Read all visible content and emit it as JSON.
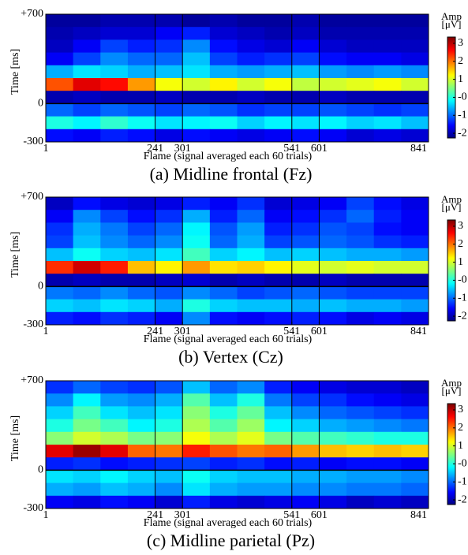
{
  "chart_data": [
    {
      "type": "heatmap",
      "title": "(a) Midline frontal (Fz)",
      "xlabel": "Flame (signal averaged each 60 trials)",
      "ylabel": "Time [ms]",
      "colorbar_label": [
        "Amp",
        "[μV]"
      ],
      "xlim": [
        1,
        841
      ],
      "ylim": [
        -300,
        700
      ],
      "xticks": [
        1,
        241,
        301,
        541,
        601,
        841
      ],
      "yticks": [
        {
          "value": 700,
          "label": "+700"
        },
        0,
        -300
      ],
      "vlines": [
        241,
        301,
        541,
        601
      ],
      "hlines": [
        0
      ],
      "clim": [
        -2.26,
        3.35
      ],
      "cticks": [
        3,
        2,
        1,
        {
          "value": 0,
          "label": "-0"
        },
        -1,
        -2
      ],
      "colormap": "jet",
      "xbins": [
        1,
        61,
        121,
        181,
        241,
        301,
        361,
        421,
        481,
        541,
        601,
        661,
        721,
        781,
        841
      ],
      "ybins": [
        700,
        600,
        500,
        400,
        300,
        200,
        100,
        0,
        -100,
        -200,
        -300
      ],
      "z": [
        [
          -2.1,
          -2.1,
          -2,
          -2,
          -2,
          -2.1,
          -2,
          -2.1,
          -2.1,
          -2,
          -2.1,
          -2.1,
          -2.1,
          -2.1
        ],
        [
          -2,
          -1.9,
          -1.8,
          -1.8,
          -1.6,
          -1.4,
          -1.8,
          -1.9,
          -2,
          -1.9,
          -2,
          -2,
          -2,
          -2
        ],
        [
          -1.9,
          -1.6,
          -1.2,
          -1.4,
          -1.3,
          -0.8,
          -1.5,
          -1.7,
          -1.8,
          -1.6,
          -1.8,
          -1.9,
          -1.9,
          -1.9
        ],
        [
          -1.6,
          -1.2,
          -0.8,
          -1,
          -1,
          -0.5,
          -1.2,
          -1.4,
          -1.3,
          -1.2,
          -1.5,
          -1.6,
          -1.6,
          -1.7
        ],
        [
          -0.6,
          -0.3,
          -0.4,
          -0.6,
          -0.5,
          -0.3,
          -0.6,
          -0.7,
          -0.6,
          -0.5,
          -0.7,
          -0.8,
          -0.7,
          -0.8
        ],
        [
          2.2,
          2.8,
          2.6,
          1.8,
          1.2,
          1.0,
          1.3,
          1.0,
          1.2,
          0.9,
          1.0,
          1.1,
          1.2,
          1.0
        ],
        [
          -2,
          -1.9,
          -2,
          -2,
          -1.9,
          -2,
          -2,
          -1.9,
          -2,
          -2,
          -1.9,
          -2,
          -2,
          -2
        ],
        [
          -1,
          -1.2,
          -1,
          -1.1,
          -1.2,
          -1,
          -1.1,
          -1.3,
          -1.2,
          -1.2,
          -1.1,
          -1.2,
          -1.3,
          -1.2
        ],
        [
          0,
          -0.2,
          0.1,
          -0.1,
          -0.3,
          -0.2,
          -0.1,
          -0.4,
          -0.2,
          -0.3,
          -0.2,
          -0.4,
          -0.3,
          -0.5
        ],
        [
          -1.5,
          -1.6,
          -1.4,
          -1.5,
          -1.7,
          -1.5,
          -1.6,
          -1.7,
          -1.6,
          -1.5,
          -1.6,
          -1.8,
          -1.7,
          -1.8
        ]
      ]
    },
    {
      "type": "heatmap",
      "title": "(b) Vertex (Cz)",
      "xlabel": "Flame (signal averaged each 60 trials)",
      "ylabel": "Time [ms]",
      "colorbar_label": [
        "Amp",
        "[μV]"
      ],
      "xlim": [
        1,
        841
      ],
      "ylim": [
        -300,
        700
      ],
      "xticks": [
        1,
        241,
        301,
        541,
        601,
        841
      ],
      "yticks": [
        {
          "value": 700,
          "label": "+700"
        },
        0,
        -300
      ],
      "vlines": [
        241,
        301,
        541,
        601
      ],
      "hlines": [
        0
      ],
      "clim": [
        -2.26,
        3.35
      ],
      "cticks": [
        3,
        2,
        1,
        {
          "value": 0,
          "label": "-0"
        },
        -1,
        -2
      ],
      "colormap": "jet",
      "xbins": [
        1,
        61,
        121,
        181,
        241,
        301,
        361,
        421,
        481,
        541,
        601,
        661,
        721,
        781,
        841
      ],
      "ybins": [
        700,
        600,
        500,
        400,
        300,
        200,
        100,
        0,
        -100,
        -200,
        -300
      ],
      "z": [
        [
          -1.9,
          -1.5,
          -1.7,
          -1.8,
          -1.7,
          -1.4,
          -1.6,
          -1.3,
          -1.8,
          -1.7,
          -1.6,
          -1.2,
          -1.5,
          -1.7
        ],
        [
          -1.6,
          -0.8,
          -1.2,
          -1.5,
          -1.3,
          -0.6,
          -1.4,
          -1.0,
          -1.6,
          -1.5,
          -1.3,
          -1.0,
          -1.4,
          -1.6
        ],
        [
          -1.3,
          -0.6,
          -0.9,
          -1.2,
          -1.0,
          -0.2,
          -1.1,
          -0.7,
          -1.4,
          -1.3,
          -1.1,
          -1.2,
          -1.5,
          -1.6
        ],
        [
          -1.2,
          -0.5,
          -0.8,
          -1.0,
          -0.8,
          -0.1,
          -1.0,
          -0.6,
          -1.2,
          -1.1,
          -1.0,
          -1.1,
          -1.3,
          -1.4
        ],
        [
          -0.5,
          -0.1,
          -0.4,
          -0.5,
          -0.3,
          0.2,
          -0.4,
          -0.2,
          -0.5,
          -0.4,
          -0.5,
          -0.6,
          -0.6,
          -0.7
        ],
        [
          2.4,
          2.9,
          2.5,
          1.6,
          1.3,
          1.8,
          1.4,
          1.5,
          1.3,
          1.1,
          1.0,
          1.1,
          1.0,
          1.0
        ],
        [
          -2,
          -1.9,
          -2,
          -2,
          -1.9,
          -1.8,
          -2,
          -1.9,
          -2,
          -2,
          -1.9,
          -2,
          -2,
          -2
        ],
        [
          -0.9,
          -1.0,
          -0.8,
          -1.0,
          -1.1,
          -0.8,
          -1.0,
          -1.2,
          -1.1,
          -1.0,
          -1.1,
          -1.2,
          -1.2,
          -1.2
        ],
        [
          -0.4,
          -0.5,
          -0.3,
          -0.4,
          -0.6,
          0.0,
          -0.4,
          -0.5,
          -0.5,
          -0.6,
          -0.5,
          -0.6,
          -0.6,
          -0.7
        ],
        [
          -1.4,
          -1.5,
          -1.3,
          -1.4,
          -1.6,
          -0.8,
          -1.5,
          -1.6,
          -1.5,
          -1.4,
          -1.5,
          -1.7,
          -1.6,
          -1.7
        ]
      ]
    },
    {
      "type": "heatmap",
      "title": "(c) Midline parietal (Pz)",
      "xlabel": "Flame (signal averaged each 60 trials)",
      "ylabel": "Time [ms]",
      "colorbar_label": [
        "Amp",
        "[μV]"
      ],
      "xlim": [
        1,
        841
      ],
      "ylim": [
        -300,
        700
      ],
      "xticks": [
        1,
        241,
        301,
        541,
        601,
        841
      ],
      "yticks": [
        {
          "value": 700,
          "label": "+700"
        },
        0,
        -300
      ],
      "vlines": [
        241,
        301,
        541,
        601
      ],
      "hlines": [
        0
      ],
      "clim": [
        -2.26,
        3.35
      ],
      "cticks": [
        3,
        2,
        1,
        {
          "value": 0,
          "label": "-0"
        },
        -1,
        -2
      ],
      "colormap": "jet",
      "xbins": [
        1,
        61,
        121,
        181,
        241,
        301,
        361,
        421,
        481,
        541,
        601,
        661,
        721,
        781,
        841
      ],
      "ybins": [
        700,
        600,
        500,
        400,
        300,
        200,
        100,
        0,
        -100,
        -200,
        -300
      ],
      "z": [
        [
          -1.3,
          -1.0,
          -1.2,
          -1.3,
          -1.1,
          -0.5,
          -1.0,
          -0.8,
          -1.4,
          -1.6,
          -1.7,
          -1.8,
          -1.8,
          -1.9
        ],
        [
          -0.8,
          -0.2,
          -0.7,
          -0.8,
          -0.6,
          0.3,
          -0.5,
          0.0,
          -0.9,
          -1.2,
          -1.3,
          -1.5,
          -1.6,
          -1.7
        ],
        [
          -0.4,
          0.2,
          -0.3,
          -0.5,
          -0.3,
          0.6,
          0.0,
          0.4,
          -0.5,
          -0.8,
          -1.0,
          -1.1,
          -1.2,
          -1.3
        ],
        [
          0.0,
          0.5,
          0.2,
          -0.2,
          0.0,
          0.8,
          0.3,
          0.7,
          -0.2,
          -0.4,
          -0.6,
          -0.7,
          -0.8,
          -0.9
        ],
        [
          0.6,
          1.0,
          0.8,
          0.5,
          0.6,
          1.2,
          0.8,
          1.1,
          0.5,
          0.3,
          0.2,
          0.1,
          0.0,
          0.0
        ],
        [
          2.8,
          3.2,
          2.8,
          2.1,
          2.0,
          2.5,
          2.2,
          2.0,
          2.1,
          1.8,
          1.6,
          1.5,
          1.6,
          1.5
        ],
        [
          -1.4,
          -1.3,
          -1.5,
          -1.4,
          -1.3,
          -1.2,
          -1.4,
          -1.3,
          -1.5,
          -1.4,
          -1.6,
          -1.5,
          -1.5,
          -1.6
        ],
        [
          -0.3,
          -0.4,
          -0.2,
          -0.4,
          -0.5,
          -0.1,
          -0.4,
          -0.5,
          -0.5,
          -0.6,
          -0.6,
          -0.7,
          -0.7,
          -0.8
        ],
        [
          -0.6,
          -0.7,
          -0.5,
          -0.6,
          -0.8,
          -0.3,
          -0.6,
          -0.7,
          -0.7,
          -0.8,
          -0.8,
          -0.9,
          -0.9,
          -1.0
        ],
        [
          -1.6,
          -1.7,
          -1.5,
          -1.6,
          -1.8,
          -1.4,
          -1.7,
          -1.8,
          -1.7,
          -1.6,
          -1.7,
          -1.9,
          -1.8,
          -1.9
        ]
      ]
    }
  ]
}
